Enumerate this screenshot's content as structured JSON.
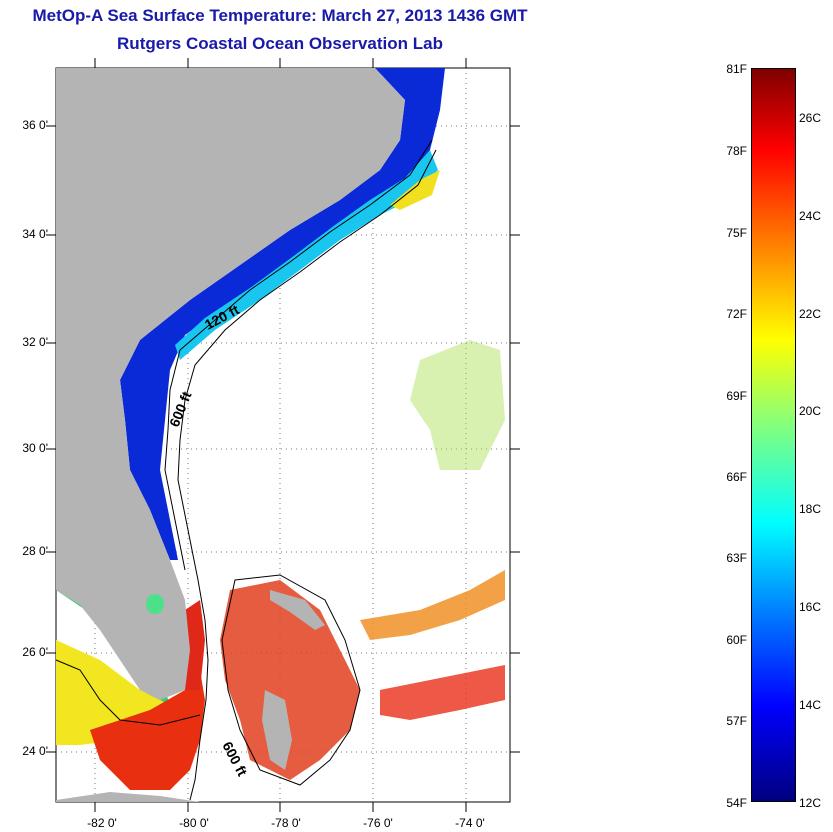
{
  "title": {
    "line1": "MetOp-A Sea Surface Temperature:  March 27, 2013 1436 GMT",
    "line2": "Rutgers Coastal Ocean Observation Lab"
  },
  "map": {
    "lat_ticks": [
      "36 0'",
      "34 0'",
      "32 0'",
      "30 0'",
      "28 0'",
      "26 0'",
      "24 0'"
    ],
    "lon_ticks": [
      "-82 0'",
      "-80 0'",
      "-78 0'",
      "-76 0'",
      "-74 0'"
    ],
    "isobath_labels": [
      "120 ft",
      "600 ft",
      "600 ft"
    ],
    "land_color": "#b4b4b4",
    "ocean_color": "#ffffff"
  },
  "colorbar": {
    "fahrenheit_labels": [
      "81F",
      "78F",
      "75F",
      "72F",
      "69F",
      "66F",
      "63F",
      "60F",
      "57F",
      "54F"
    ],
    "celsius_labels": [
      "26C",
      "24C",
      "22C",
      "20C",
      "18C",
      "16C",
      "14C",
      "12C"
    ],
    "range_f": [
      54,
      81
    ],
    "range_c": [
      12,
      27.2
    ],
    "colors": [
      "#00007f",
      "#0000ff",
      "#0080ff",
      "#00ffff",
      "#80ff80",
      "#ffff00",
      "#ff8000",
      "#ff0000",
      "#7f0000"
    ]
  }
}
